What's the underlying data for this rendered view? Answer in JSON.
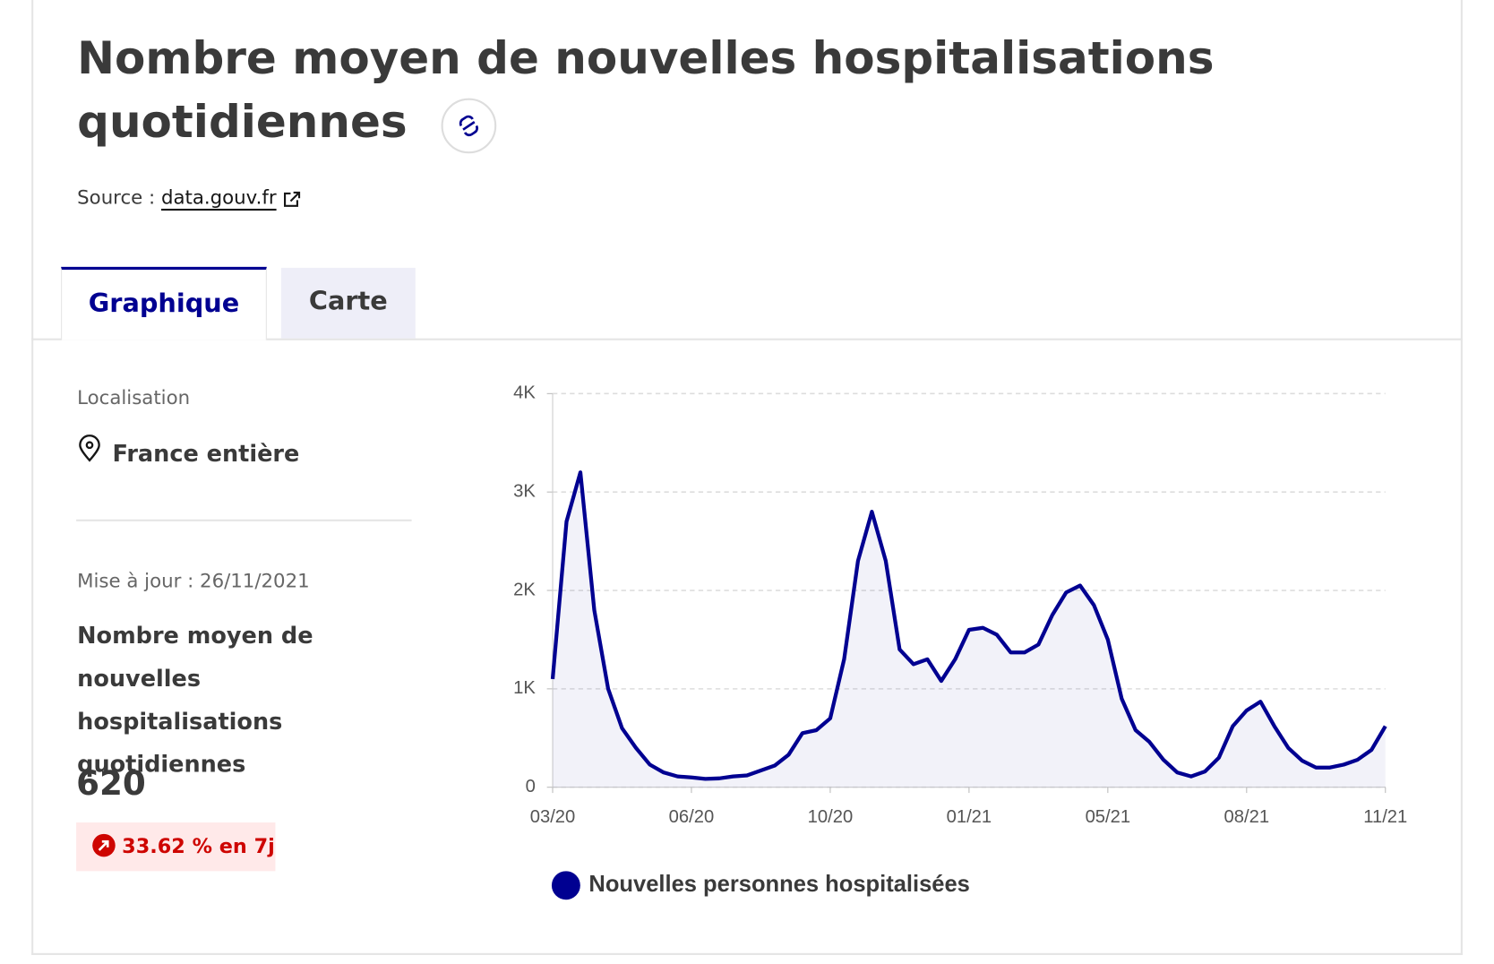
{
  "header": {
    "title": "Nombre moyen de nouvelles hospitalisations quotidiennes",
    "source_label": "Source :",
    "source_link": "data.gouv.fr"
  },
  "tabs": [
    "Graphique",
    "Carte"
  ],
  "sidebar": {
    "location_label": "Localisation",
    "location": "France entière",
    "updated": "Mise à jour : 26/11/2021",
    "indicator": "Nombre moyen de nouvelles hospitalisations quotidiennes",
    "value": 620,
    "change": "33.62 % en 7j"
  },
  "chart_data": {
    "type": "line",
    "categories": [
      "03/20",
      null,
      null,
      null,
      null,
      null,
      null,
      null,
      null,
      null,
      "06/20",
      null,
      null,
      null,
      null,
      null,
      null,
      null,
      null,
      null,
      "10/20",
      null,
      null,
      null,
      null,
      null,
      null,
      null,
      null,
      null,
      "01/21",
      null,
      null,
      null,
      null,
      null,
      null,
      null,
      null,
      null,
      "05/21",
      null,
      null,
      null,
      null,
      null,
      null,
      null,
      null,
      null,
      "08/21",
      null,
      null,
      null,
      null,
      null,
      null,
      null,
      null,
      null,
      "11/21"
    ],
    "series": [
      {
        "name": "Nouvelles personnes hospitalisées",
        "color": "#000091",
        "values": [
          1100,
          2700,
          3200,
          1800,
          1000,
          600,
          400,
          230,
          150,
          110,
          100,
          85,
          90,
          110,
          120,
          170,
          220,
          330,
          550,
          580,
          700,
          1300,
          2300,
          2800,
          2300,
          1400,
          1250,
          1300,
          1080,
          1300,
          1600,
          1620,
          1550,
          1370,
          1370,
          1450,
          1750,
          1980,
          2050,
          1850,
          1500,
          900,
          580,
          460,
          280,
          150,
          110,
          160,
          300,
          620,
          780,
          870,
          620,
          400,
          270,
          200,
          200,
          230,
          280,
          380,
          620
        ]
      }
    ],
    "ylim": [
      0,
      4000
    ],
    "yticks": [
      0,
      {
        "value": 1000,
        "label": "1K"
      },
      {
        "value": 2000,
        "label": "2K"
      },
      {
        "value": 3000,
        "label": "3K"
      },
      {
        "value": 4000,
        "label": "4K"
      }
    ],
    "grid": true,
    "area": true
  }
}
